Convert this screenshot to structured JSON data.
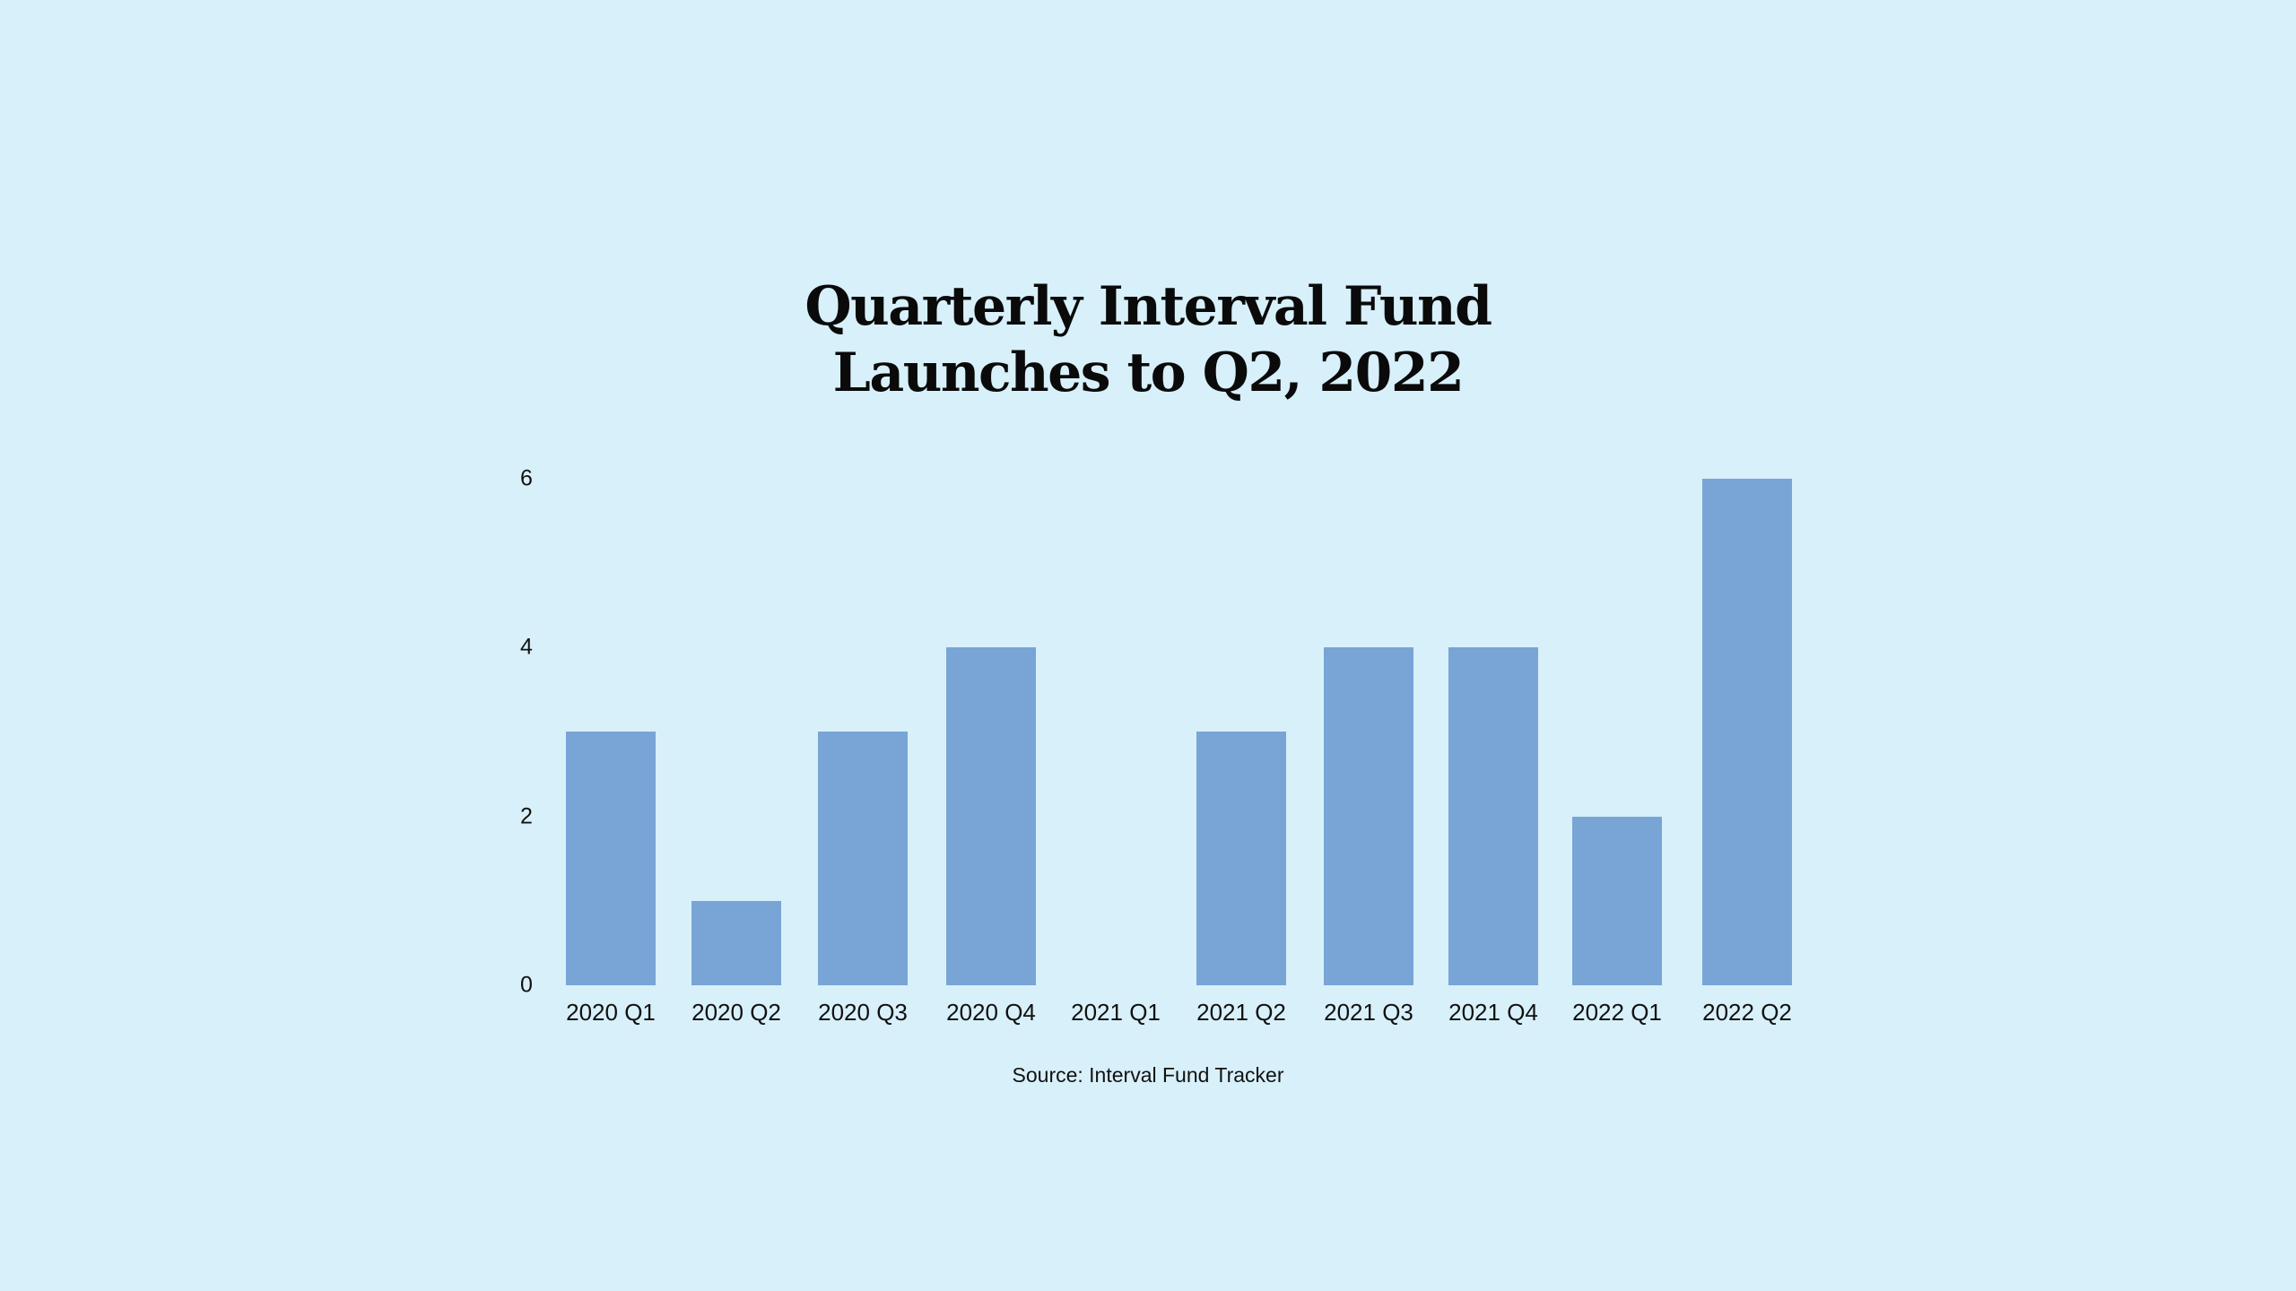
{
  "title": {
    "line1": "Quarterly Interval Fund",
    "line2": "Launches to Q2, 2022"
  },
  "source": "Source: Interval Fund Tracker",
  "colors": {
    "background": "#d8f0f9",
    "bar": "#78a5d6",
    "text": "#0a0a0a"
  },
  "chart_data": {
    "type": "bar",
    "title": "Quarterly Interval Fund Launches to Q2, 2022",
    "xlabel": "",
    "ylabel": "",
    "categories": [
      "2020 Q1",
      "2020 Q2",
      "2020 Q3",
      "2020 Q4",
      "2021 Q1",
      "2021 Q2",
      "2021 Q3",
      "2021 Q4",
      "2022 Q1",
      "2022 Q2"
    ],
    "values": [
      3,
      1,
      3,
      4,
      0,
      3,
      4,
      4,
      2,
      6
    ],
    "yticks": [
      "0",
      "2",
      "4",
      "6"
    ],
    "ylim": [
      0,
      6
    ],
    "grid": false,
    "legend": null,
    "annotations": [
      "Source: Interval Fund Tracker"
    ]
  }
}
